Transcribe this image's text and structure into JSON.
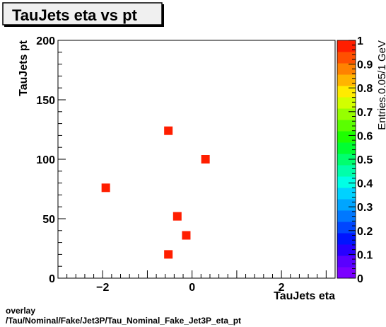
{
  "chart_data": {
    "type": "scatter",
    "title": "TauJets eta vs pt",
    "xlabel": "TauJets eta",
    "ylabel": "TauJets pt",
    "zlabel": "Entries.0.05/1 GeV",
    "xlim": [
      -3.0,
      3.2
    ],
    "ylim": [
      0,
      200
    ],
    "zlim": [
      0,
      1
    ],
    "x_ticks": [
      -2,
      0,
      2
    ],
    "x_tick_labels": [
      "−2",
      "0",
      "2"
    ],
    "y_ticks": [
      0,
      50,
      100,
      150,
      200
    ],
    "y_tick_labels": [
      "0",
      "50",
      "100",
      "150",
      "200"
    ],
    "z_ticks": [
      0,
      0.1,
      0.2,
      0.3,
      0.4,
      0.5,
      0.6,
      0.7,
      0.8,
      0.9,
      1
    ],
    "z_tick_labels": [
      "0",
      "0.1",
      "0.2",
      "0.3",
      "0.4",
      "0.5",
      "0.6",
      "0.7",
      "0.8",
      "0.9",
      "1"
    ],
    "points": [
      {
        "x": -0.53,
        "y": 124,
        "z": 1
      },
      {
        "x": 0.3,
        "y": 100,
        "z": 1
      },
      {
        "x": -1.93,
        "y": 76,
        "z": 1
      },
      {
        "x": -0.33,
        "y": 52,
        "z": 1
      },
      {
        "x": -0.13,
        "y": 36,
        "z": 1
      },
      {
        "x": -0.53,
        "y": 20,
        "z": 1
      }
    ],
    "colorbar_colors": [
      "#7b00ff",
      "#5a00ff",
      "#2800ff",
      "#0014ff",
      "#0046ff",
      "#0078ff",
      "#00a5ff",
      "#00d2ff",
      "#00ffe6",
      "#00ffaa",
      "#00ff6e",
      "#00ff32",
      "#1eff00",
      "#5aff00",
      "#96ff00",
      "#d2ff00",
      "#ffeb00",
      "#ffb400",
      "#ff8200",
      "#ff5000",
      "#ff1e00"
    ],
    "marker_color": "#ff1e00"
  },
  "footer": {
    "line1": "overlay",
    "line2": "/Tau/Nominal/Fake/Jet3P/Tau_Nominal_Fake_Jet3P_eta_pt"
  }
}
